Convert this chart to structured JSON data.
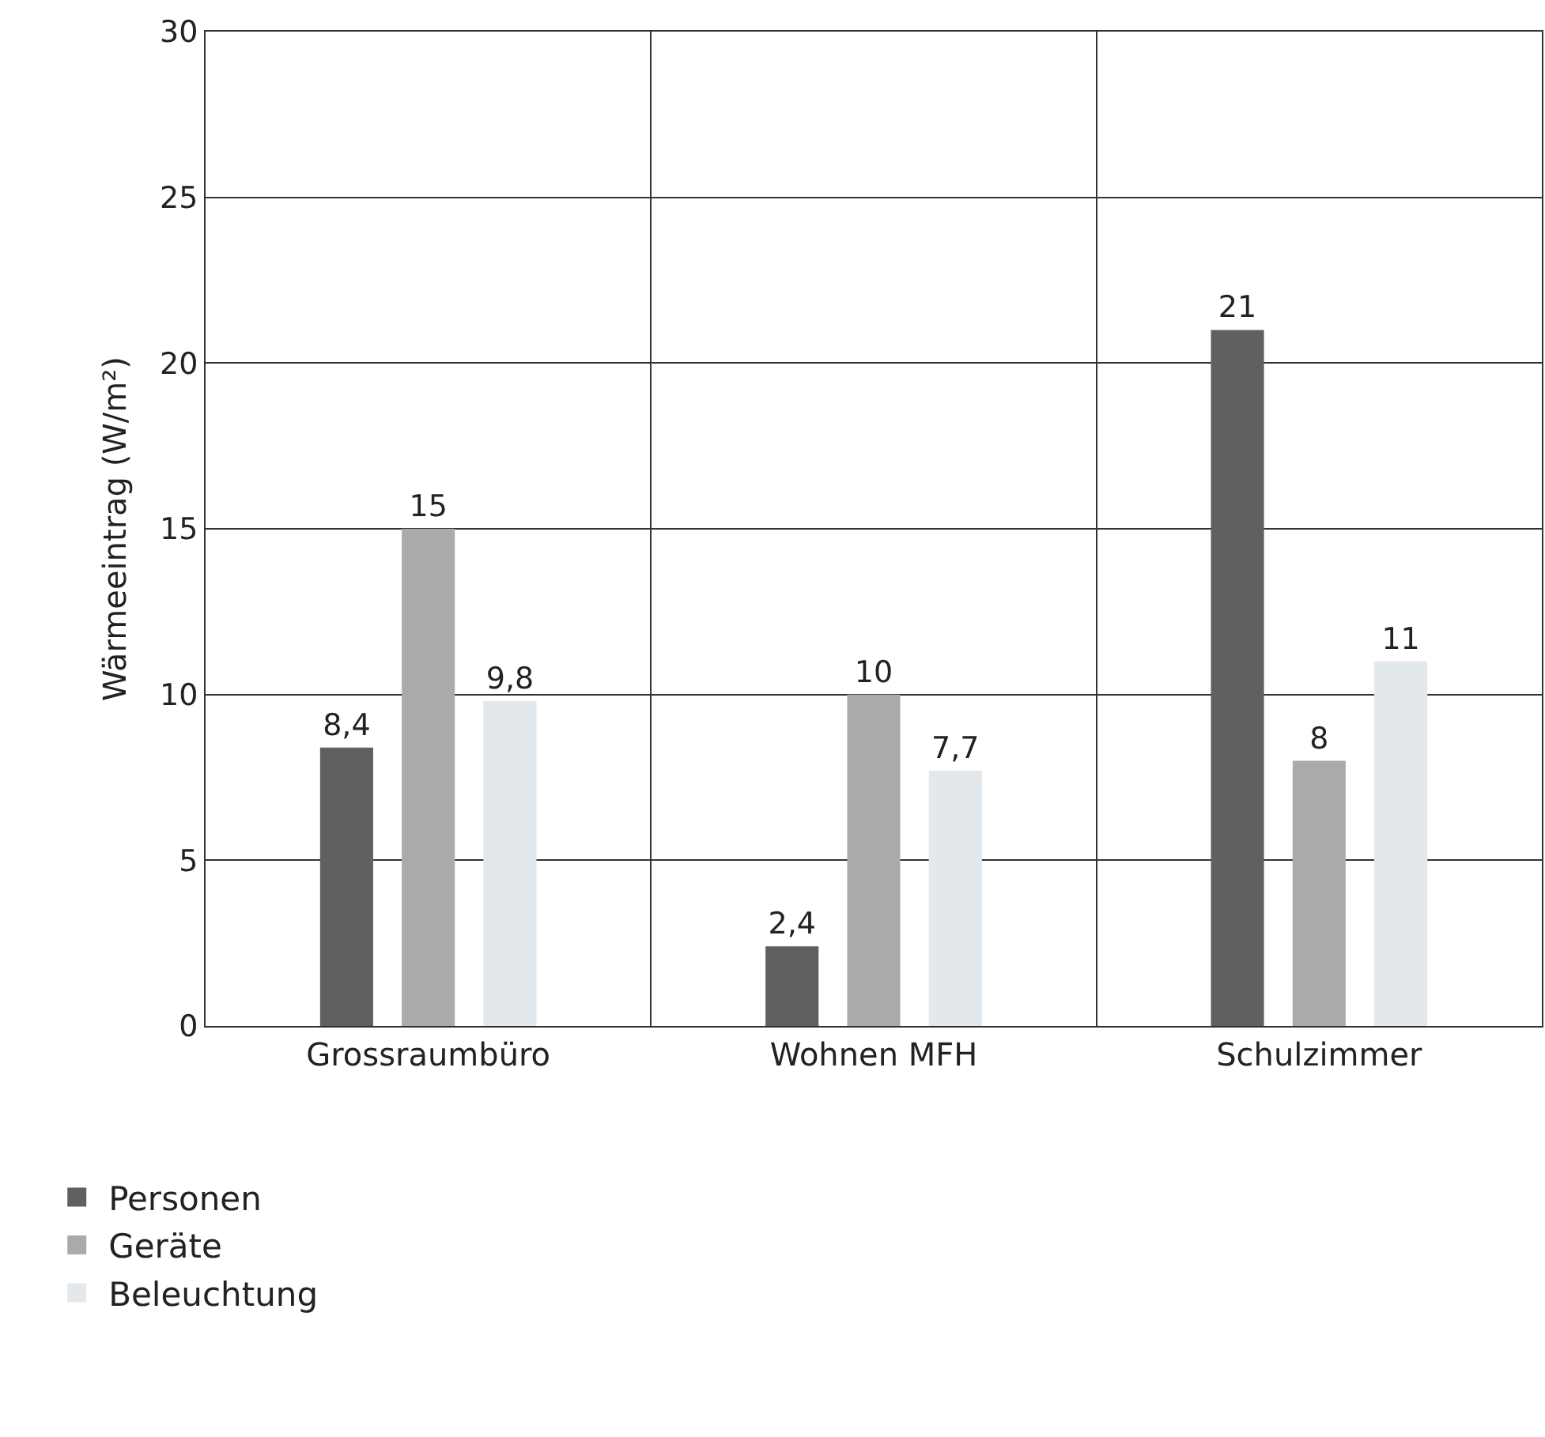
{
  "chart_data": {
    "type": "bar",
    "ylabel": "Wärmeeintrag (W/m²)",
    "categories": [
      "Grossraumbüro",
      "Wohnen MFH",
      "Schulzimmer"
    ],
    "series": [
      {
        "name": "Personen",
        "color": "#5f6160",
        "values": [
          8.4,
          2.4,
          21
        ],
        "value_labels": [
          "8,4",
          "2,4",
          "21"
        ]
      },
      {
        "name": "Geräte",
        "color": "#a9abaa",
        "values": [
          15,
          10,
          8
        ],
        "value_labels": [
          "15",
          "10",
          "8"
        ]
      },
      {
        "name": "Beleuchtung",
        "color": "#e3e8ec",
        "values": [
          9.8,
          7.7,
          11
        ],
        "value_labels": [
          "9,8",
          "7,7",
          "11"
        ]
      }
    ],
    "ylim": [
      0,
      30
    ],
    "yticks": [
      0,
      5,
      10,
      15,
      20,
      25,
      30
    ],
    "grid": true,
    "legend": "bottom left"
  }
}
